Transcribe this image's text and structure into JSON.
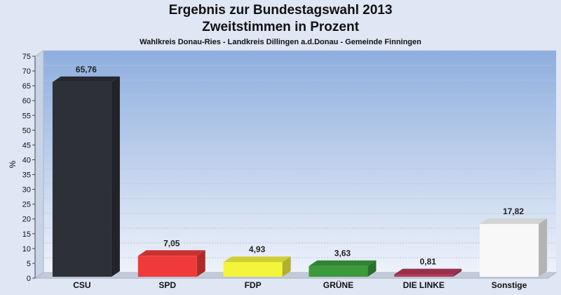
{
  "chart_data": {
    "type": "bar",
    "title": "Ergebnis zur Bundestagswahl 2013",
    "title2": "Zweitstimmen in Prozent",
    "subtitle": "Wahlkreis Donau-Ries - Landkreis Dillingen a.d.Donau - Gemeinde Finningen",
    "ylabel": "%",
    "ylim": [
      0,
      75
    ],
    "yticks": [
      "0",
      "5",
      "10",
      "15",
      "20",
      "25",
      "30",
      "35",
      "40",
      "45",
      "50",
      "55",
      "60",
      "65",
      "70",
      "75"
    ],
    "categories": [
      "CSU",
      "SPD",
      "FDP",
      "GRÜNE",
      "DIE LINKE",
      "Sonstige"
    ],
    "values": [
      65.76,
      7.05,
      4.93,
      3.63,
      0.81,
      17.82
    ],
    "value_labels": [
      "65,76",
      "7,05",
      "4,93",
      "3,63",
      "0,81",
      "17,82"
    ],
    "colors": [
      "#2e3038",
      "#f03a3a",
      "#f4f43a",
      "#3c9a3c",
      "#b23a58",
      "#f8f8f8"
    ],
    "grid": true
  }
}
